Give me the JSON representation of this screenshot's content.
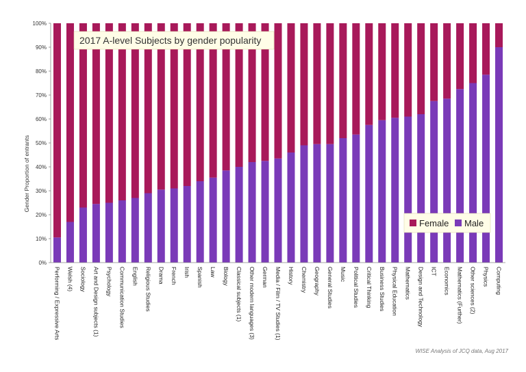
{
  "chart_data": {
    "type": "bar",
    "stacked": true,
    "percent_stacked": true,
    "title": "2017 A-level Subjects by gender popularity",
    "ylabel": "Gender Proportion of entrants",
    "xlabel": "",
    "ylim": [
      0,
      100
    ],
    "yticks": [
      "0%",
      "10%",
      "20%",
      "30%",
      "40%",
      "50%",
      "60%",
      "70%",
      "80%",
      "90%",
      "100%"
    ],
    "grid": false,
    "legend_position": "bottom-right",
    "colors": {
      "Female": "#a8195a",
      "Male": "#7a3ab8"
    },
    "categories": [
      "Performing / Expressive Arts",
      "Welsh (4)",
      "Sociology",
      "Art and Design subjects (1)",
      "Psychology",
      "Communication Studies",
      "English",
      "Religious Studies",
      "Drama",
      "French",
      "Irish",
      "Spanish",
      "Law",
      "Biology",
      "Classical subjects (1)",
      "Other modern languages (3)",
      "German",
      "Media / Film / TV Studies (1)",
      "History",
      "Chemistry",
      "Geography",
      "General Studies",
      "Music",
      "Political Studies",
      "Critical Thinking",
      "Business Studies",
      "Physical Education",
      "Mathematics",
      "Design and Technology",
      "ICT",
      "Economics",
      "Mathematics (Further)",
      "Other sciences (2)",
      "Physics",
      "Computing"
    ],
    "series": [
      {
        "name": "Male",
        "values": [
          10.5,
          17,
          23,
          24.5,
          25,
          26,
          27,
          29,
          30.5,
          31,
          32,
          34,
          35.5,
          38.5,
          40,
          42,
          42.5,
          43.5,
          46,
          49,
          49.5,
          49.5,
          52,
          53.5,
          57.5,
          59.5,
          60.5,
          61,
          62,
          67.5,
          68.5,
          72.5,
          75,
          78.5,
          90
        ]
      },
      {
        "name": "Female",
        "values": [
          89.5,
          83,
          77,
          75.5,
          75,
          74,
          73,
          71,
          69.5,
          69,
          68,
          66,
          64.5,
          61.5,
          60,
          58,
          57.5,
          56.5,
          54,
          51,
          50.5,
          50.5,
          48,
          46.5,
          42.5,
          40.5,
          39.5,
          39,
          38,
          32.5,
          31.5,
          27.5,
          25,
          21.5,
          10
        ]
      }
    ],
    "source_note": "WISE Analysis of JCQ data, Aug 2017"
  }
}
